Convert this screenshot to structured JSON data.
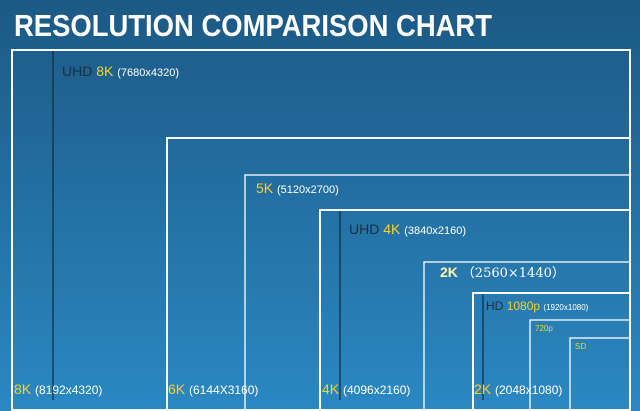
{
  "title": "RESOLUTION COMPARISON CHART",
  "outer_boxes": [
    {
      "name": "8K",
      "resolution": "(8192x4320)"
    },
    {
      "name": "6K",
      "resolution": "(6144X3160)"
    },
    {
      "name": "4K",
      "resolution": "(4096x2160)"
    },
    {
      "name": "2K",
      "resolution": "(2048x1080)"
    }
  ],
  "inner_labels": [
    {
      "prefix": "UHD",
      "name": "8K",
      "resolution": "(7680x4320)"
    },
    {
      "name": "5K",
      "resolution": "(5120x2700)"
    },
    {
      "prefix": "UHD",
      "name": "4K",
      "resolution": "(3840x2160)"
    },
    {
      "name": "2K",
      "resolution": "（2560×1440）"
    },
    {
      "prefix": "HD",
      "name": "1080p",
      "resolution": "(1920x1080)"
    },
    {
      "name": "720p"
    },
    {
      "name": "SD"
    }
  ]
}
